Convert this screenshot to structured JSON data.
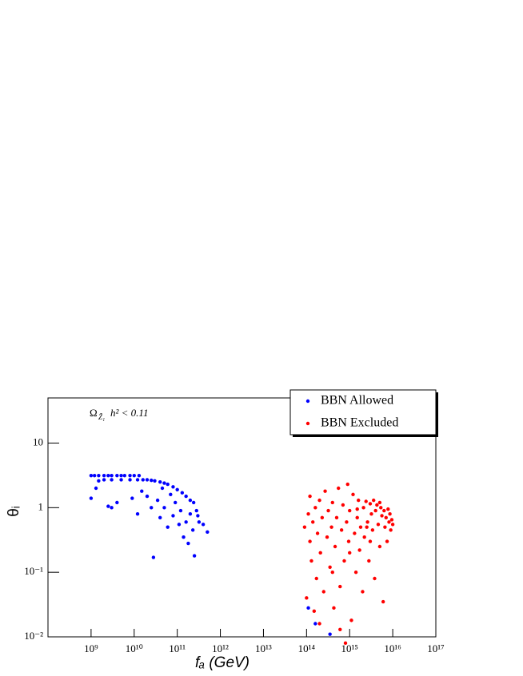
{
  "chart_data": {
    "type": "scatter",
    "x_label": "fₐ (GeV)",
    "y_label": "θᵢ",
    "annotation": {
      "symbol": "Ω",
      "subscript": "Z̃₁",
      "text": "h² < 0.11"
    },
    "log_x": true,
    "log_y": true,
    "xlim": [
      100000000.0,
      1e+17
    ],
    "ylim": [
      0.01,
      50
    ],
    "xticks": [
      {
        "value": 1000000000.0,
        "label": "10⁹"
      },
      {
        "value": 10000000000.0,
        "label": "10¹⁰"
      },
      {
        "value": 100000000000.0,
        "label": "10¹¹"
      },
      {
        "value": 1000000000000.0,
        "label": "10¹²"
      },
      {
        "value": 10000000000000.0,
        "label": "10¹³"
      },
      {
        "value": 100000000000000.0,
        "label": "10¹⁴"
      },
      {
        "value": 1000000000000000.0,
        "label": "10¹⁵"
      },
      {
        "value": 1e+16,
        "label": "10¹⁶"
      },
      {
        "value": 1e+17,
        "label": "10¹⁷"
      }
    ],
    "yticks": [
      {
        "value": 0.01,
        "label": "10⁻²"
      },
      {
        "value": 0.1,
        "label": "10⁻¹"
      },
      1,
      10
    ],
    "legend_position": "upper right",
    "series": [
      {
        "name": "BBN Allowed",
        "color": "#0000ff",
        "x": [
          1000000000.0,
          1200000000.0,
          1500000000.0,
          2000000000.0,
          2500000000.0,
          3000000000.0,
          4000000000.0,
          5000000000.0,
          6000000000.0,
          8000000000.0,
          10000000000.0,
          13000000000.0,
          1500000000.0,
          2000000000.0,
          3000000000.0,
          5000000000.0,
          8000000000.0,
          12000000000.0,
          16000000000.0,
          20000000000.0,
          25000000000.0,
          30000000000.0,
          40000000000.0,
          50000000000.0,
          60000000000.0,
          80000000000.0,
          100000000000.0,
          130000000000.0,
          160000000000.0,
          200000000000.0,
          240000000000.0,
          1000000000.0,
          1300000000.0,
          2500000000.0,
          3000000000.0,
          4000000000.0,
          9000000000.0,
          12000000000.0,
          15000000000.0,
          20000000000.0,
          25000000000.0,
          28000000000.0,
          35000000000.0,
          40000000000.0,
          45000000000.0,
          50000000000.0,
          60000000000.0,
          70000000000.0,
          80000000000.0,
          90000000000.0,
          110000000000.0,
          120000000000.0,
          140000000000.0,
          160000000000.0,
          180000000000.0,
          200000000000.0,
          230000000000.0,
          250000000000.0,
          280000000000.0,
          320000000000.0,
          400000000000.0,
          500000000000.0,
          300000000000.0,
          110000000000000.0,
          160000000000000.0,
          350000000000000.0
        ],
        "values": [
          3.14,
          3.14,
          3.14,
          3.14,
          3.14,
          3.14,
          3.14,
          3.14,
          3.14,
          3.14,
          3.14,
          3.14,
          2.6,
          2.7,
          2.7,
          2.7,
          2.7,
          2.7,
          2.7,
          2.7,
          2.65,
          2.6,
          2.5,
          2.4,
          2.3,
          2.1,
          1.9,
          1.7,
          1.5,
          1.3,
          1.2,
          1.4,
          2.0,
          1.05,
          1.0,
          1.2,
          1.4,
          0.8,
          1.8,
          1.5,
          1.0,
          0.17,
          1.3,
          0.7,
          2.0,
          1.0,
          0.5,
          1.6,
          0.75,
          1.2,
          0.55,
          0.9,
          0.35,
          0.6,
          0.28,
          0.8,
          0.45,
          0.18,
          0.9,
          0.6,
          0.55,
          0.42,
          0.75,
          0.028,
          0.016,
          0.011
        ]
      },
      {
        "name": "BBN Excluded",
        "color": "#ff0000",
        "x": [
          90000000000000.0,
          100000000000000.0,
          110000000000000.0,
          120000000000000.0,
          120000000000000.0,
          130000000000000.0,
          140000000000000.0,
          150000000000000.0,
          160000000000000.0,
          170000000000000.0,
          180000000000000.0,
          200000000000000.0,
          210000000000000.0,
          230000000000000.0,
          250000000000000.0,
          270000000000000.0,
          300000000000000.0,
          320000000000000.0,
          350000000000000.0,
          380000000000000.0,
          400000000000000.0,
          430000000000000.0,
          460000000000000.0,
          500000000000000.0,
          550000000000000.0,
          600000000000000.0,
          650000000000000.0,
          700000000000000.0,
          750000000000000.0,
          800000000000000.0,
          850000000000000.0,
          900000000000000.0,
          950000000000000.0,
          1000000000000000.0,
          1100000000000000.0,
          1200000000000000.0,
          1300000000000000.0,
          1400000000000000.0,
          1500000000000000.0,
          1600000000000000.0,
          1700000000000000.0,
          1800000000000000.0,
          2000000000000000.0,
          2100000000000000.0,
          2200000000000000.0,
          2400000000000000.0,
          2600000000000000.0,
          2800000000000000.0,
          3000000000000000.0,
          3200000000000000.0,
          3400000000000000.0,
          3600000000000000.0,
          3800000000000000.0,
          4000000000000000.0,
          4300000000000000.0,
          4600000000000000.0,
          5000000000000000.0,
          5300000000000000.0,
          5600000000000000.0,
          6000000000000000.0,
          6300000000000000.0,
          6600000000000000.0,
          7000000000000000.0,
          7400000000000000.0,
          7800000000000000.0,
          8200000000000000.0,
          8600000000000000.0,
          9000000000000000.0,
          9500000000000000.0,
          1e+16,
          1500000000000000.0,
          2500000000000000.0,
          5000000000000000.0,
          3000000000000000.0,
          1000000000000000.0,
          400000000000000.0,
          600000000000000.0,
          200000000000000.0
        ],
        "values": [
          0.5,
          0.04,
          0.8,
          0.3,
          1.5,
          0.15,
          0.6,
          0.025,
          1.0,
          0.08,
          0.4,
          1.3,
          0.2,
          0.7,
          0.05,
          1.8,
          0.35,
          0.9,
          0.12,
          0.5,
          1.2,
          0.028,
          0.25,
          0.7,
          2.0,
          0.06,
          0.45,
          1.1,
          0.15,
          0.008,
          0.6,
          2.3,
          0.3,
          0.9,
          0.018,
          1.6,
          0.4,
          0.1,
          0.7,
          1.3,
          0.22,
          0.5,
          0.05,
          1.0,
          0.35,
          1.25,
          0.6,
          0.15,
          1.15,
          0.8,
          0.45,
          1.3,
          0.08,
          0.9,
          1.1,
          0.55,
          0.25,
          1.0,
          0.75,
          0.035,
          0.9,
          0.5,
          0.7,
          0.3,
          0.95,
          0.6,
          0.8,
          0.45,
          0.65,
          0.55,
          0.95,
          0.5,
          1.2,
          0.3,
          0.2,
          0.1,
          0.013,
          0.016
        ]
      }
    ]
  }
}
